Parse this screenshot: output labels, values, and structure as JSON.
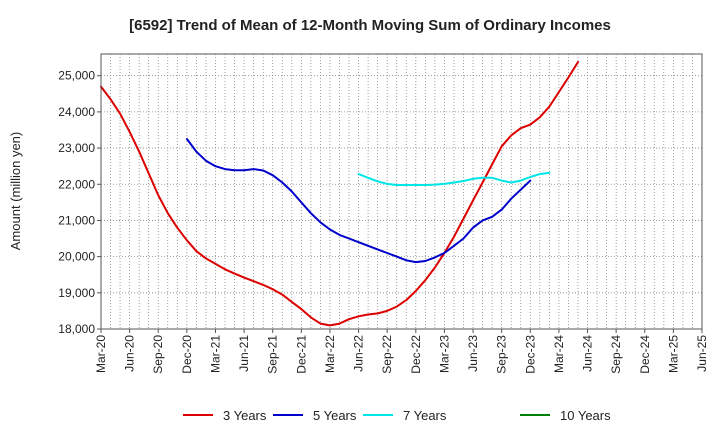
{
  "chart_data": {
    "type": "line",
    "title": "[6592]  Trend of Mean of 12-Month Moving Sum of Ordinary Incomes",
    "xlabel": "",
    "ylabel": "Amount (million yen)",
    "ylim": [
      18000,
      25600
    ],
    "yticks": [
      18000,
      19000,
      20000,
      21000,
      22000,
      23000,
      24000,
      25000
    ],
    "ytick_labels": [
      "18,000",
      "19,000",
      "20,000",
      "21,000",
      "22,000",
      "23,000",
      "24,000",
      "25,000"
    ],
    "x_categories": [
      "Mar-20",
      "Jun-20",
      "Sep-20",
      "Dec-20",
      "Mar-21",
      "Jun-21",
      "Sep-21",
      "Dec-21",
      "Mar-22",
      "Jun-22",
      "Sep-22",
      "Dec-22",
      "Mar-23",
      "Jun-23",
      "Sep-23",
      "Dec-23",
      "Mar-24",
      "Jun-24",
      "Sep-24",
      "Dec-24",
      "Mar-25",
      "Jun-25"
    ],
    "grid": true,
    "legend_position": "bottom",
    "series": [
      {
        "name": "3 Years",
        "color": "#dd0000",
        "start_index": 0,
        "values": [
          24700,
          24350,
          23950,
          23450,
          22900,
          22300,
          21700,
          21200,
          20800,
          20450,
          20150,
          19950,
          19800,
          19650,
          19530,
          19420,
          19320,
          19220,
          19100,
          18950,
          18750,
          18550,
          18320,
          18150,
          18100,
          18150,
          18270,
          18350,
          18400,
          18430,
          18500,
          18620,
          18800,
          19050,
          19350,
          19700,
          20100,
          20550,
          21050,
          21550,
          22050,
          22550,
          23050,
          23350,
          23550,
          23650,
          23850,
          24150,
          24550,
          24950,
          25380
        ]
      },
      {
        "name": "5 Years",
        "color": "#0000cc",
        "start_index": 9,
        "values": [
          23250,
          22900,
          22650,
          22500,
          22420,
          22390,
          22390,
          22420,
          22380,
          22250,
          22050,
          21800,
          21500,
          21200,
          20950,
          20750,
          20600,
          20500,
          20400,
          20300,
          20200,
          20100,
          20000,
          19900,
          19850,
          19880,
          19980,
          20100,
          20300,
          20500,
          20800,
          21000,
          21100,
          21300,
          21600,
          21850,
          22100
        ]
      },
      {
        "name": "7 Years",
        "color": "#00e5e5",
        "start_index": 27,
        "values": [
          22280,
          22180,
          22080,
          22010,
          21980,
          21980,
          21980,
          21980,
          21990,
          22010,
          22050,
          22090,
          22150,
          22180,
          22180,
          22100,
          22050,
          22100,
          22200,
          22280,
          22320
        ]
      },
      {
        "name": "10 Years",
        "color": "#008000",
        "start_index": 0,
        "values": []
      }
    ]
  }
}
